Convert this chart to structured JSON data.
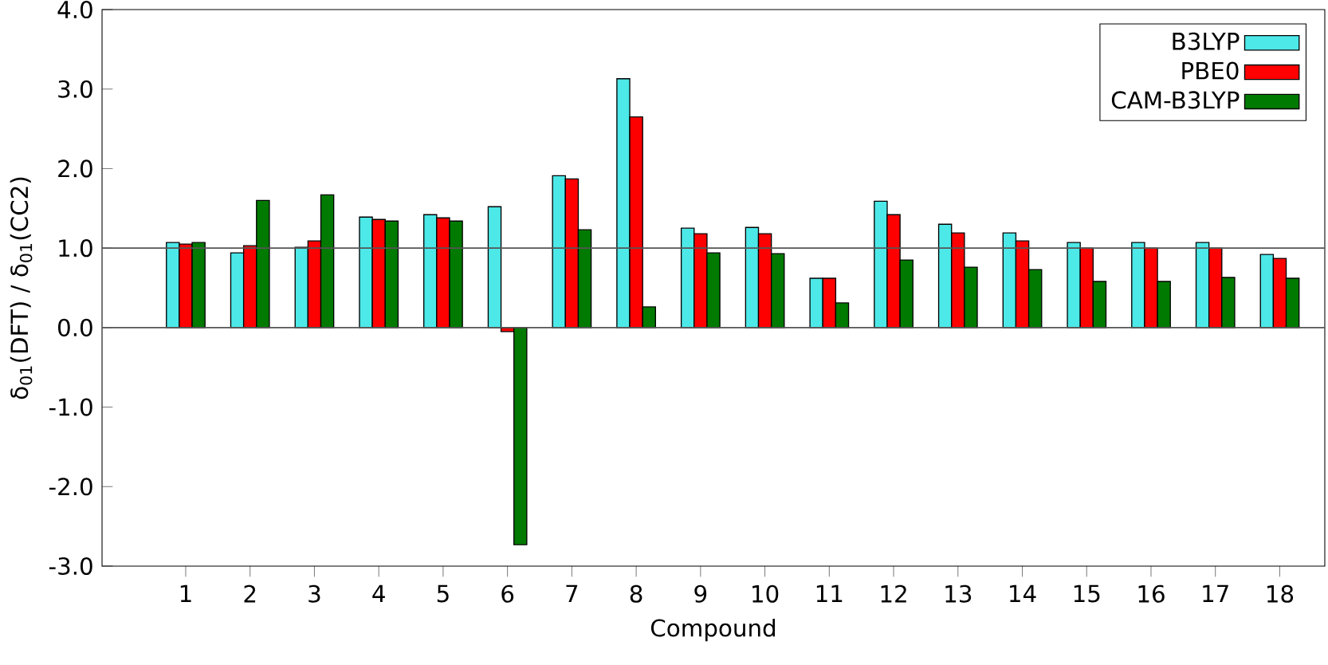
{
  "chart_data": {
    "type": "bar",
    "xlabel": "Compound",
    "ylabel": "δ$_{01}$(DFT) / δ$_{01}$(CC2)",
    "categories": [
      "1",
      "2",
      "3",
      "4",
      "5",
      "6",
      "7",
      "8",
      "9",
      "10",
      "11",
      "12",
      "13",
      "14",
      "15",
      "16",
      "17",
      "18"
    ],
    "series": [
      {
        "name": "B3LYP",
        "color": "#4de8e8",
        "values": [
          1.07,
          0.94,
          1.01,
          1.39,
          1.42,
          1.52,
          1.91,
          3.13,
          1.25,
          1.26,
          0.62,
          1.59,
          1.3,
          1.19,
          1.07,
          1.07,
          1.07,
          0.92
        ]
      },
      {
        "name": "PBE0",
        "color": "#ff0000",
        "values": [
          1.05,
          1.03,
          1.09,
          1.36,
          1.38,
          -0.05,
          1.87,
          2.65,
          1.18,
          1.18,
          0.62,
          1.42,
          1.19,
          1.09,
          1.0,
          1.0,
          1.0,
          0.87
        ]
      },
      {
        "name": "CAM-B3LYP",
        "color": "#007a00",
        "values": [
          1.07,
          1.6,
          1.67,
          1.34,
          1.34,
          -2.73,
          1.23,
          0.26,
          0.94,
          0.93,
          0.31,
          0.85,
          0.76,
          0.73,
          0.58,
          0.58,
          0.63,
          0.62
        ]
      }
    ],
    "ylim": [
      -3,
      4
    ],
    "yticks": [
      {
        "value": -3,
        "label": "-3.0"
      },
      {
        "value": -2,
        "label": "-2.0"
      },
      {
        "value": -1,
        "label": "-1.0"
      },
      {
        "value": 0,
        "label": "0.0"
      },
      {
        "value": 1,
        "label": "1.0"
      },
      {
        "value": 2,
        "label": "2.0"
      },
      {
        "value": 3,
        "label": "3.0"
      },
      {
        "value": 4,
        "label": "4.0"
      }
    ],
    "ref_lines": [
      {
        "axis": "y",
        "value": 0,
        "color": "#555555"
      },
      {
        "axis": "y",
        "value": 1,
        "color": "#555555"
      }
    ],
    "grid": false,
    "legend": "top right"
  }
}
